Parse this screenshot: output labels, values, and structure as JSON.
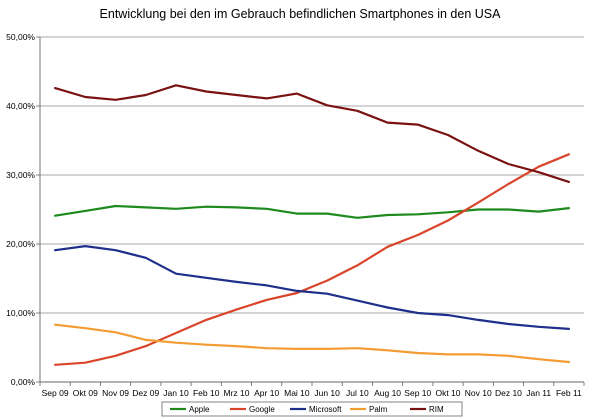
{
  "chart_data": {
    "type": "line",
    "title": "Entwicklung bei den im Gebrauch befindlichen Smartphones in den USA",
    "xlabel": "",
    "ylabel": "",
    "ylim": [
      0,
      50
    ],
    "yticks": [
      "0,00%",
      "10,00%",
      "20,00%",
      "30,00%",
      "40,00%",
      "50,00%"
    ],
    "grid": "horizontal",
    "legend_position": "bottom",
    "categories": [
      "Sep 09",
      "Okt 09",
      "Nov 09",
      "Dez 09",
      "Jan 10",
      "Feb 10",
      "Mrz 10",
      "Apr 10",
      "Mai 10",
      "Jun 10",
      "Jul 10",
      "Aug 10",
      "Sep 10",
      "Okt 10",
      "Nov 10",
      "Dez 10",
      "Jan 11",
      "Feb 11"
    ],
    "series": [
      {
        "name": "Apple",
        "color": "#1e8a1e",
        "values": [
          24.1,
          24.8,
          25.5,
          25.3,
          25.1,
          25.4,
          25.3,
          25.1,
          24.4,
          24.4,
          23.8,
          24.2,
          24.3,
          24.6,
          25.0,
          25.0,
          24.7,
          25.2
        ]
      },
      {
        "name": "Google",
        "color": "#d9452b",
        "values": [
          2.5,
          2.8,
          3.8,
          5.2,
          7.1,
          9.0,
          10.5,
          11.9,
          12.9,
          14.7,
          16.9,
          19.6,
          21.3,
          23.4,
          26.0,
          28.7,
          31.2,
          33.0
        ]
      },
      {
        "name": "Microsoft",
        "color": "#1f2f8c",
        "values": [
          19.1,
          19.7,
          19.1,
          18.0,
          15.7,
          15.1,
          14.5,
          14.0,
          13.2,
          12.8,
          11.8,
          10.8,
          10.0,
          9.7,
          9.0,
          8.4,
          8.0,
          7.7
        ]
      },
      {
        "name": "Palm",
        "color": "#f39c33",
        "values": [
          8.3,
          7.8,
          7.2,
          6.1,
          5.7,
          5.4,
          5.2,
          4.9,
          4.8,
          4.8,
          4.9,
          4.6,
          4.2,
          4.0,
          4.0,
          3.8,
          3.3,
          2.9
        ]
      },
      {
        "name": "RIM",
        "color": "#7a1212",
        "values": [
          42.6,
          41.3,
          40.9,
          41.6,
          43.0,
          42.1,
          41.6,
          41.1,
          41.8,
          40.1,
          39.3,
          37.6,
          37.3,
          35.8,
          33.5,
          31.6,
          30.4,
          29.0
        ]
      }
    ]
  }
}
